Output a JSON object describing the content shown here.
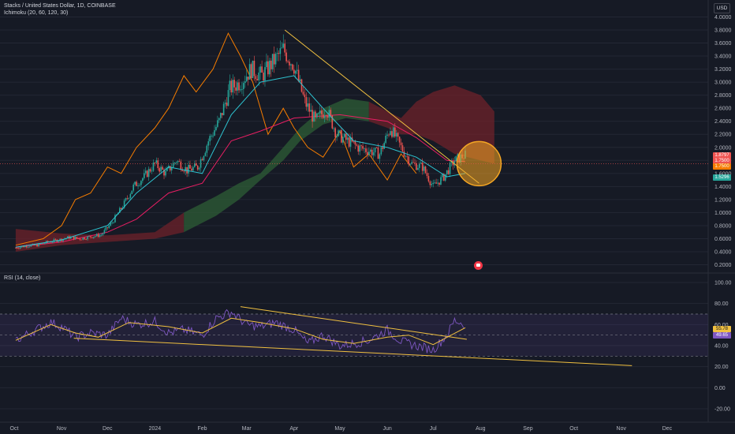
{
  "header": {
    "symbol_line": "Stacks / United States Dollar, 1D, COINBASE",
    "indicator_line": "Ichimoku (20, 60, 120, 30)",
    "rsi_label": "RSI (14, close)",
    "currency_badge": "USD"
  },
  "colors": {
    "background": "#161a25",
    "candle_up": "#26a69a",
    "candle_down": "#ef5350",
    "tenkan": "#2ec4d1",
    "kijun": "#e91e63",
    "chikou": "#f57c00",
    "cloud_bull": "#2e5e36",
    "cloud_bear": "#6e2229",
    "trendline": "#f0c040",
    "rsi_line": "#7e57c2",
    "rsi_ma": "#f0c040",
    "highlight_circle": "#f5a623"
  },
  "price_tags": [
    {
      "value": "1.8797",
      "color": "#ef5350"
    },
    {
      "value": "1.7500",
      "color": "#ef5350"
    },
    {
      "value": "1.7500",
      "color": "#f57c00"
    },
    {
      "value": "1.5296",
      "color": "#26a69a"
    }
  ],
  "chart_data": [
    {
      "type": "candlestick",
      "title": "Stacks / United States Dollar, 1D, COINBASE",
      "y_ticks": [
        "4.0000",
        "3.8000",
        "3.6000",
        "3.4000",
        "3.2000",
        "3.0000",
        "2.8000",
        "2.6000",
        "2.4000",
        "2.2000",
        "2.0000",
        "1.8000",
        "1.6000",
        "1.4000",
        "1.2000",
        "1.0000",
        "0.8000",
        "0.6000",
        "0.4000",
        "0.2000"
      ],
      "ylim": [
        0.2,
        4.0
      ],
      "x_ticks": [
        "Oct",
        "Nov",
        "Dec",
        "2024",
        "Feb",
        "Mar",
        "Apr",
        "May",
        "Jun",
        "Jul",
        "Aug",
        "Sep",
        "Oct",
        "Nov",
        "Dec"
      ],
      "close_series": [
        [
          "2023-10-02",
          0.46
        ],
        [
          "2023-10-09",
          0.49
        ],
        [
          "2023-10-16",
          0.5
        ],
        [
          "2023-10-23",
          0.55
        ],
        [
          "2023-10-30",
          0.58
        ],
        [
          "2023-11-06",
          0.62
        ],
        [
          "2023-11-13",
          0.6
        ],
        [
          "2023-11-20",
          0.63
        ],
        [
          "2023-11-27",
          0.66
        ],
        [
          "2023-12-04",
          0.85
        ],
        [
          "2023-12-11",
          1.1
        ],
        [
          "2023-12-18",
          1.4
        ],
        [
          "2023-12-25",
          1.55
        ],
        [
          "2024-01-01",
          1.75
        ],
        [
          "2024-01-08",
          1.6
        ],
        [
          "2024-01-15",
          1.8
        ],
        [
          "2024-01-22",
          1.65
        ],
        [
          "2024-01-29",
          1.7
        ],
        [
          "2024-02-05",
          2.1
        ],
        [
          "2024-02-12",
          2.4
        ],
        [
          "2024-02-19",
          2.9
        ],
        [
          "2024-02-26",
          3.0
        ],
        [
          "2024-03-04",
          3.2
        ],
        [
          "2024-03-11",
          3.1
        ],
        [
          "2024-03-18",
          3.3
        ],
        [
          "2024-03-25",
          3.5
        ],
        [
          "2024-04-01",
          3.25
        ],
        [
          "2024-04-08",
          2.7
        ],
        [
          "2024-04-15",
          2.4
        ],
        [
          "2024-04-22",
          2.6
        ],
        [
          "2024-04-29",
          2.2
        ],
        [
          "2024-05-06",
          2.1
        ],
        [
          "2024-05-13",
          2.0
        ],
        [
          "2024-05-20",
          1.95
        ],
        [
          "2024-05-27",
          1.9
        ],
        [
          "2024-06-03",
          2.3
        ],
        [
          "2024-06-10",
          2.0
        ],
        [
          "2024-06-17",
          1.75
        ],
        [
          "2024-06-24",
          1.7
        ],
        [
          "2024-07-01",
          1.4
        ],
        [
          "2024-07-08",
          1.55
        ],
        [
          "2024-07-15",
          1.8
        ],
        [
          "2024-07-22",
          1.88
        ]
      ],
      "kijun_series": [
        [
          "2023-10-02",
          0.47
        ],
        [
          "2023-11-01",
          0.55
        ],
        [
          "2023-12-01",
          0.7
        ],
        [
          "2023-12-20",
          0.9
        ],
        [
          "2024-01-10",
          1.3
        ],
        [
          "2024-02-01",
          1.45
        ],
        [
          "2024-02-20",
          2.1
        ],
        [
          "2024-03-10",
          2.25
        ],
        [
          "2024-04-01",
          2.45
        ],
        [
          "2024-05-01",
          2.5
        ],
        [
          "2024-06-01",
          2.4
        ],
        [
          "2024-06-20",
          2.15
        ],
        [
          "2024-07-10",
          1.8
        ],
        [
          "2024-07-22",
          1.78
        ]
      ],
      "tenkan_series": [
        [
          "2023-10-02",
          0.47
        ],
        [
          "2023-11-01",
          0.58
        ],
        [
          "2023-12-01",
          0.8
        ],
        [
          "2023-12-20",
          1.3
        ],
        [
          "2024-01-10",
          1.7
        ],
        [
          "2024-02-01",
          1.6
        ],
        [
          "2024-02-20",
          2.5
        ],
        [
          "2024-03-10",
          3.0
        ],
        [
          "2024-04-01",
          3.1
        ],
        [
          "2024-04-20",
          2.6
        ],
        [
          "2024-05-10",
          2.1
        ],
        [
          "2024-06-01",
          2.0
        ],
        [
          "2024-06-20",
          1.85
        ],
        [
          "2024-07-10",
          1.55
        ],
        [
          "2024-07-22",
          1.6
        ]
      ],
      "chikou_series": [
        [
          "2023-10-02",
          0.5
        ],
        [
          "2023-10-20",
          0.6
        ],
        [
          "2023-11-01",
          0.8
        ],
        [
          "2023-11-10",
          1.2
        ],
        [
          "2023-11-20",
          1.3
        ],
        [
          "2023-12-01",
          1.7
        ],
        [
          "2023-12-10",
          1.6
        ],
        [
          "2023-12-20",
          2.0
        ],
        [
          "2024-01-01",
          2.3
        ],
        [
          "2024-01-10",
          2.6
        ],
        [
          "2024-01-20",
          3.1
        ],
        [
          "2024-01-28",
          2.85
        ],
        [
          "2024-02-08",
          3.2
        ],
        [
          "2024-02-18",
          3.75
        ],
        [
          "2024-02-26",
          3.4
        ],
        [
          "2024-03-05",
          3.0
        ],
        [
          "2024-03-15",
          2.2
        ],
        [
          "2024-03-25",
          2.6
        ],
        [
          "2024-04-01",
          2.3
        ],
        [
          "2024-04-10",
          2.0
        ],
        [
          "2024-04-20",
          1.85
        ],
        [
          "2024-05-01",
          2.25
        ],
        [
          "2024-05-10",
          1.7
        ],
        [
          "2024-05-20",
          1.9
        ],
        [
          "2024-06-01",
          1.5
        ],
        [
          "2024-06-10",
          1.9
        ],
        [
          "2024-06-20",
          1.6
        ]
      ],
      "cloud_upper": [
        [
          "2023-10-02",
          0.75
        ],
        [
          "2023-11-01",
          0.68
        ],
        [
          "2023-12-01",
          0.65
        ],
        [
          "2024-01-01",
          0.7
        ],
        [
          "2024-01-20",
          1.0
        ],
        [
          "2024-02-10",
          1.25
        ],
        [
          "2024-02-25",
          1.45
        ],
        [
          "2024-03-10",
          1.6
        ],
        [
          "2024-03-25",
          2.0
        ],
        [
          "2024-04-05",
          2.3
        ],
        [
          "2024-04-20",
          2.6
        ],
        [
          "2024-05-05",
          2.75
        ],
        [
          "2024-05-20",
          2.7
        ],
        [
          "2024-06-01",
          2.55
        ],
        [
          "2024-06-10",
          2.45
        ],
        [
          "2024-06-20",
          2.7
        ],
        [
          "2024-07-01",
          2.85
        ],
        [
          "2024-07-15",
          2.95
        ],
        [
          "2024-08-01",
          2.8
        ],
        [
          "2024-08-10",
          2.55
        ]
      ],
      "cloud_lower": [
        [
          "2023-10-02",
          0.4
        ],
        [
          "2023-11-01",
          0.5
        ],
        [
          "2023-12-01",
          0.55
        ],
        [
          "2024-01-01",
          0.6
        ],
        [
          "2024-01-20",
          0.7
        ],
        [
          "2024-02-10",
          0.95
        ],
        [
          "2024-02-25",
          1.2
        ],
        [
          "2024-03-10",
          1.5
        ],
        [
          "2024-03-25",
          1.8
        ],
        [
          "2024-04-05",
          2.1
        ],
        [
          "2024-04-20",
          2.35
        ],
        [
          "2024-05-05",
          2.45
        ],
        [
          "2024-05-20",
          2.4
        ],
        [
          "2024-06-01",
          2.3
        ],
        [
          "2024-06-10",
          2.2
        ],
        [
          "2024-06-20",
          2.2
        ],
        [
          "2024-07-01",
          2.1
        ],
        [
          "2024-07-15",
          1.9
        ],
        [
          "2024-08-01",
          1.8
        ],
        [
          "2024-08-10",
          1.75
        ]
      ],
      "trendline": [
        [
          "2024-03-26",
          3.8
        ],
        [
          "2024-07-31",
          1.45
        ]
      ],
      "highlight_circle": {
        "date": "2024-07-31",
        "price": 1.75
      }
    },
    {
      "type": "line",
      "title": "RSI (14, close)",
      "y_ticks": [
        "100.00",
        "80.00",
        "60.00",
        "40.00",
        "20.00",
        "0.00",
        "-20.00"
      ],
      "ylim": [
        -20,
        100
      ],
      "band": [
        30,
        70
      ],
      "mid": 50,
      "value_tags": [
        "60.00",
        "55.78",
        "49.65",
        "40.00"
      ],
      "rsi_series": [
        [
          "2023-10-02",
          45
        ],
        [
          "2023-10-15",
          55
        ],
        [
          "2023-10-25",
          62
        ],
        [
          "2023-11-01",
          58
        ],
        [
          "2023-11-10",
          48
        ],
        [
          "2023-11-20",
          52
        ],
        [
          "2023-12-01",
          50
        ],
        [
          "2023-12-10",
          66
        ],
        [
          "2023-12-20",
          60
        ],
        [
          "2024-01-01",
          63
        ],
        [
          "2024-01-10",
          52
        ],
        [
          "2024-01-20",
          55
        ],
        [
          "2024-02-01",
          50
        ],
        [
          "2024-02-10",
          66
        ],
        [
          "2024-02-20",
          72
        ],
        [
          "2024-03-01",
          60
        ],
        [
          "2024-03-10",
          58
        ],
        [
          "2024-03-20",
          62
        ],
        [
          "2024-04-01",
          55
        ],
        [
          "2024-04-10",
          42
        ],
        [
          "2024-04-20",
          50
        ],
        [
          "2024-05-01",
          40
        ],
        [
          "2024-05-10",
          42
        ],
        [
          "2024-05-20",
          45
        ],
        [
          "2024-06-01",
          55
        ],
        [
          "2024-06-10",
          44
        ],
        [
          "2024-06-20",
          40
        ],
        [
          "2024-07-01",
          36
        ],
        [
          "2024-07-10",
          50
        ],
        [
          "2024-07-15",
          64
        ],
        [
          "2024-07-22",
          60
        ]
      ],
      "rsi_ma_series": [
        [
          "2023-10-02",
          45
        ],
        [
          "2023-10-25",
          60
        ],
        [
          "2023-11-10",
          52
        ],
        [
          "2023-11-25",
          48
        ],
        [
          "2023-12-15",
          62
        ],
        [
          "2024-01-10",
          58
        ],
        [
          "2024-02-01",
          52
        ],
        [
          "2024-02-20",
          66
        ],
        [
          "2024-03-10",
          62
        ],
        [
          "2024-04-01",
          56
        ],
        [
          "2024-04-20",
          46
        ],
        [
          "2024-05-10",
          42
        ],
        [
          "2024-06-01",
          48
        ],
        [
          "2024-06-15",
          50
        ],
        [
          "2024-07-01",
          41
        ],
        [
          "2024-07-22",
          57
        ]
      ],
      "trendlines": [
        [
          [
            "2024-02-26",
            77
          ],
          [
            "2024-07-23",
            46
          ]
        ],
        [
          [
            "2023-11-09",
            47
          ],
          [
            "2024-11-08",
            21
          ]
        ]
      ]
    }
  ]
}
